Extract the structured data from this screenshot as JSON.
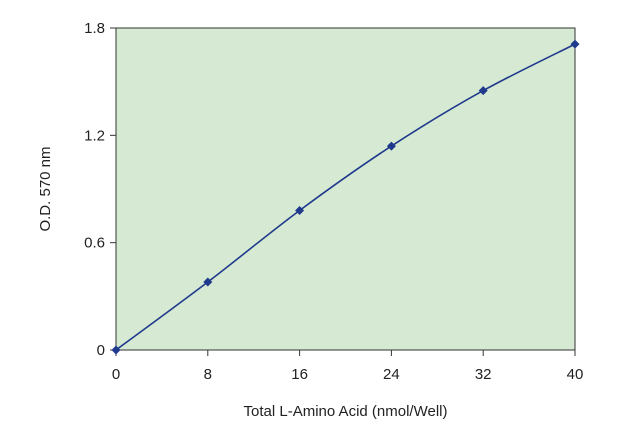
{
  "chart_data": {
    "type": "line",
    "title": "",
    "xlabel": "Total L-Amino Acid (nmol/Well)",
    "ylabel": "O.D. 570 nm",
    "xlim": [
      0,
      40
    ],
    "ylim": [
      0,
      1.8
    ],
    "x_ticks": [
      0,
      8,
      16,
      24,
      32,
      40
    ],
    "y_ticks": [
      0,
      0.6,
      1.2,
      1.8
    ],
    "x_tick_labels": [
      "0",
      "8",
      "16",
      "24",
      "32",
      "40"
    ],
    "y_tick_labels": [
      "0",
      "0.6",
      "1.2",
      "1.8"
    ],
    "grid": false,
    "legend": "none",
    "series": [
      {
        "x": [
          0,
          8,
          16,
          24,
          32,
          40
        ],
        "y": [
          0,
          0.38,
          0.78,
          1.14,
          1.45,
          1.71
        ],
        "marker": "diamond",
        "smooth": true
      }
    ],
    "colors": {
      "plot_background": "#d6e9d3",
      "series": "#1f3a8c",
      "axis": "#333333"
    }
  }
}
